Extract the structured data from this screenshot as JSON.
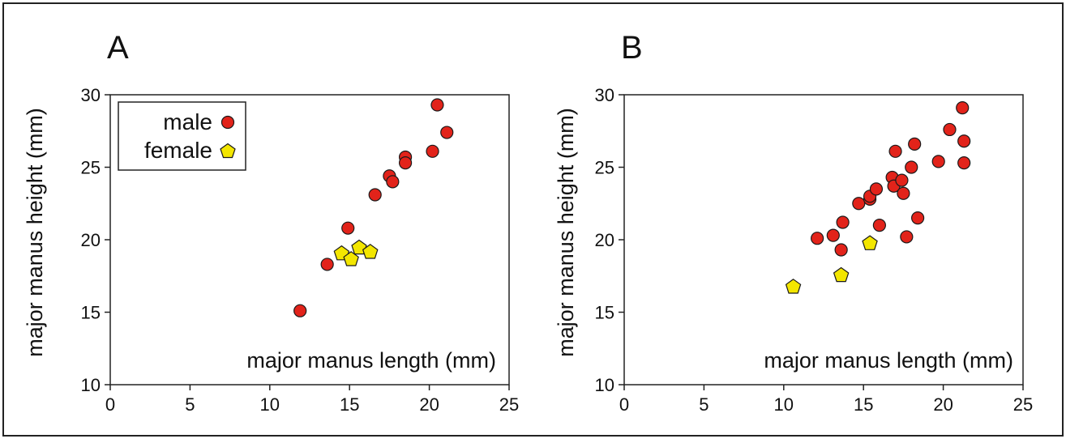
{
  "figure": {
    "colors": {
      "male": "#e2231a",
      "female": "#f3e600",
      "marker_stroke": "#1a1a1a",
      "axis": "#222222"
    }
  },
  "legend": {
    "male_label": "male",
    "female_label": "female"
  },
  "chart_data": [
    {
      "type": "scatter",
      "panel_label": "A",
      "xlabel": "major manus length (mm)",
      "ylabel": "major manus height (mm)",
      "xlim": [
        0,
        25
      ],
      "ylim": [
        10,
        30
      ],
      "xticks": [
        0,
        5,
        10,
        15,
        20,
        25
      ],
      "yticks": [
        10,
        15,
        20,
        25,
        30
      ],
      "grid": false,
      "legend_position": "top-left",
      "series": [
        {
          "name": "male",
          "marker": "circle",
          "points": [
            [
              11.9,
              15.1
            ],
            [
              13.6,
              18.3
            ],
            [
              14.9,
              20.8
            ],
            [
              16.6,
              23.1
            ],
            [
              17.5,
              24.4
            ],
            [
              17.7,
              24.0
            ],
            [
              18.5,
              25.7
            ],
            [
              18.5,
              25.3
            ],
            [
              20.2,
              26.1
            ],
            [
              20.5,
              29.3
            ],
            [
              21.1,
              27.4
            ]
          ]
        },
        {
          "name": "female",
          "marker": "pentagon",
          "points": [
            [
              14.5,
              19.1
            ],
            [
              15.1,
              18.7
            ],
            [
              15.6,
              19.5
            ],
            [
              16.3,
              19.2
            ]
          ]
        }
      ]
    },
    {
      "type": "scatter",
      "panel_label": "B",
      "xlabel": "major manus length (mm)",
      "ylabel": "major manus height (mm)",
      "xlim": [
        0,
        25
      ],
      "ylim": [
        10,
        30
      ],
      "xticks": [
        0,
        5,
        10,
        15,
        20,
        25
      ],
      "yticks": [
        10,
        15,
        20,
        25,
        30
      ],
      "grid": false,
      "series": [
        {
          "name": "male",
          "marker": "circle",
          "points": [
            [
              12.1,
              20.1
            ],
            [
              13.1,
              20.3
            ],
            [
              13.6,
              19.3
            ],
            [
              13.7,
              21.2
            ],
            [
              14.7,
              22.5
            ],
            [
              15.4,
              22.8
            ],
            [
              15.4,
              23.0
            ],
            [
              15.8,
              23.5
            ],
            [
              16.0,
              21.0
            ],
            [
              16.8,
              24.3
            ],
            [
              16.9,
              23.7
            ],
            [
              17.0,
              26.1
            ],
            [
              17.4,
              24.1
            ],
            [
              17.5,
              23.2
            ],
            [
              17.7,
              20.2
            ],
            [
              18.0,
              25.0
            ],
            [
              18.2,
              26.6
            ],
            [
              18.4,
              21.5
            ],
            [
              19.7,
              25.4
            ],
            [
              20.4,
              27.6
            ],
            [
              21.2,
              29.1
            ],
            [
              21.3,
              26.8
            ],
            [
              21.3,
              25.3
            ]
          ]
        },
        {
          "name": "female",
          "marker": "pentagon",
          "points": [
            [
              10.6,
              16.8
            ],
            [
              13.6,
              17.6
            ],
            [
              15.4,
              19.8
            ]
          ]
        }
      ]
    }
  ]
}
